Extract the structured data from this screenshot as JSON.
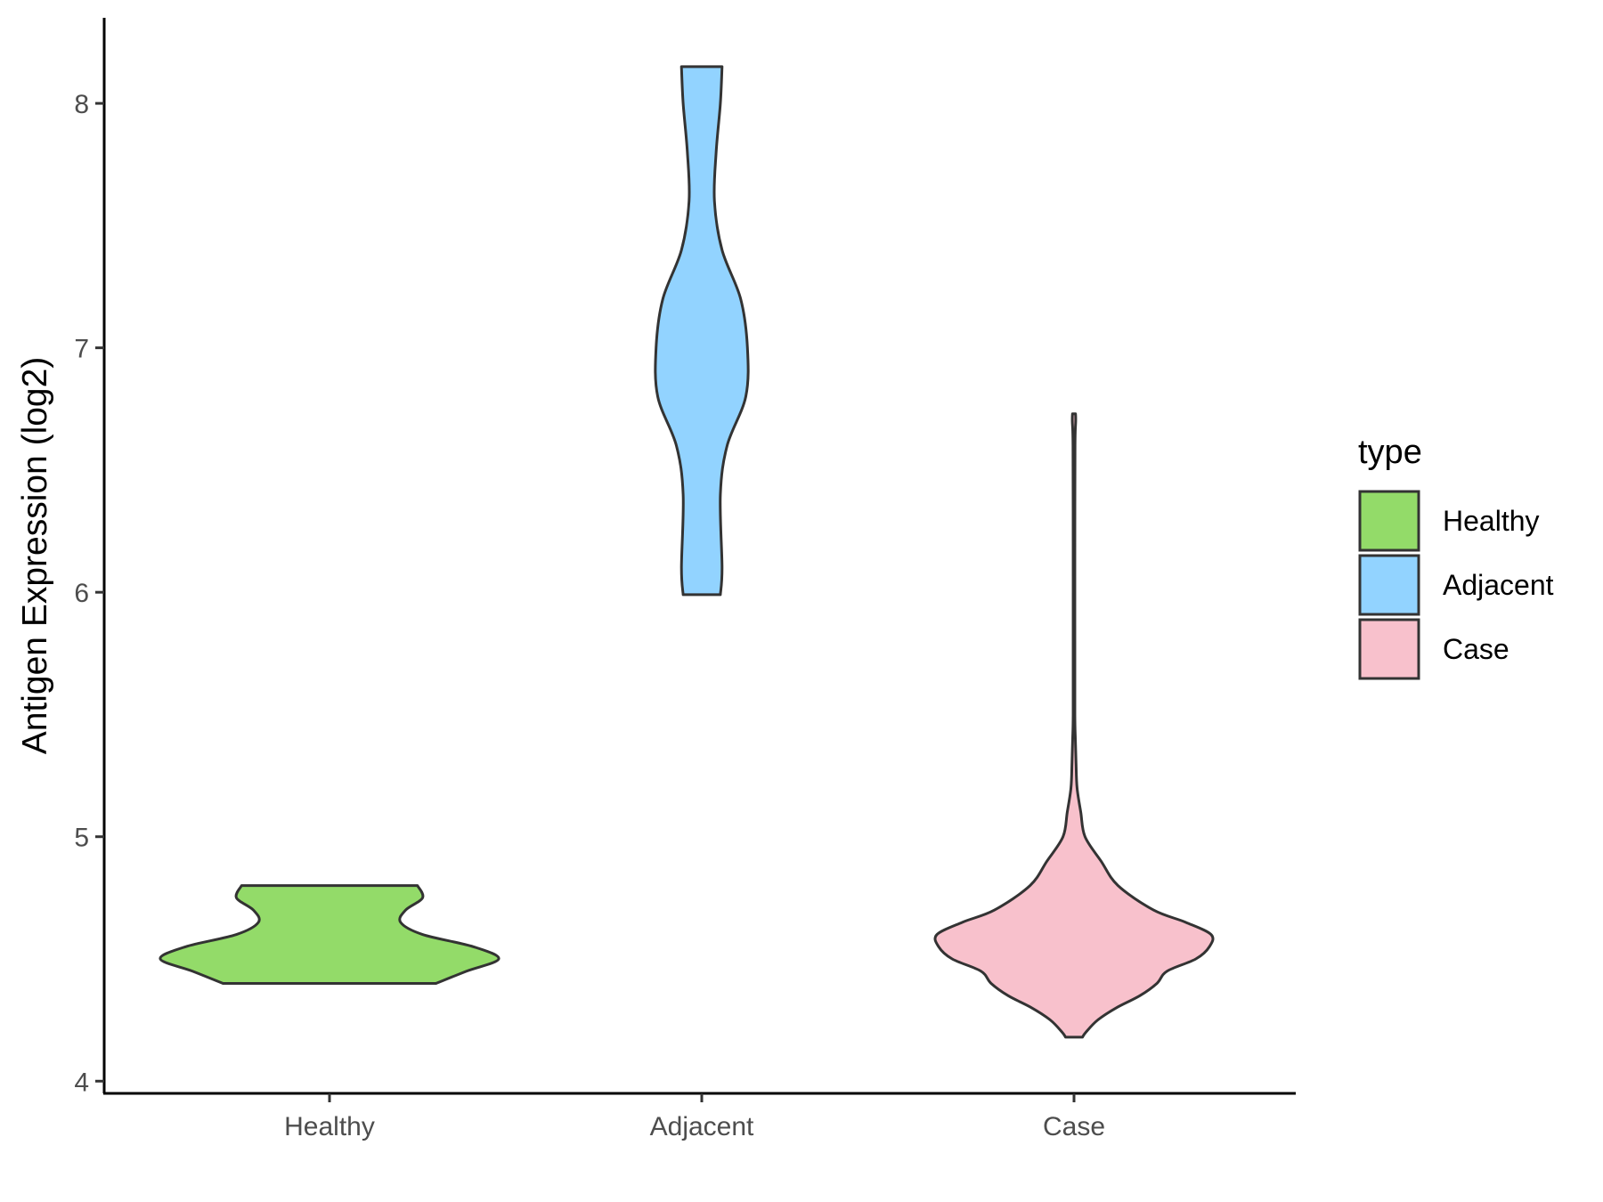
{
  "chart_data": {
    "type": "violin",
    "title": "",
    "xlabel": "",
    "ylabel": "Antigen Expression (log2)",
    "ylim": [
      3.95,
      8.35
    ],
    "yticks": [
      4,
      5,
      6,
      7,
      8
    ],
    "categories": [
      "Healthy",
      "Adjacent",
      "Case"
    ],
    "grid": false,
    "legend": {
      "title": "type",
      "position": "right",
      "entries": [
        {
          "label": "Healthy",
          "color": "#93DB69"
        },
        {
          "label": "Adjacent",
          "color": "#92D3FF"
        },
        {
          "label": "Case",
          "color": "#F8C1CC"
        }
      ]
    },
    "series": [
      {
        "category": "Healthy",
        "color": "#93DB69",
        "ymin": 4.4,
        "ymax": 4.8,
        "density": [
          [
            4.4,
            0.63
          ],
          [
            4.45,
            0.81
          ],
          [
            4.5,
            1.0
          ],
          [
            4.55,
            0.85
          ],
          [
            4.6,
            0.55
          ],
          [
            4.65,
            0.42
          ],
          [
            4.7,
            0.45
          ],
          [
            4.75,
            0.55
          ],
          [
            4.8,
            0.52
          ]
        ]
      },
      {
        "category": "Adjacent",
        "color": "#92D3FF",
        "ymin": 5.99,
        "ymax": 8.15,
        "density": [
          [
            5.99,
            0.11
          ],
          [
            6.1,
            0.12
          ],
          [
            6.4,
            0.11
          ],
          [
            6.6,
            0.15
          ],
          [
            6.8,
            0.26
          ],
          [
            7.0,
            0.27
          ],
          [
            7.2,
            0.23
          ],
          [
            7.4,
            0.12
          ],
          [
            7.6,
            0.075
          ],
          [
            7.8,
            0.085
          ],
          [
            8.0,
            0.11
          ],
          [
            8.15,
            0.12
          ]
        ]
      },
      {
        "category": "Case",
        "color": "#F8C1CC",
        "ymin": 4.18,
        "ymax": 6.73,
        "density": [
          [
            4.18,
            0.05
          ],
          [
            4.2,
            0.07
          ],
          [
            4.25,
            0.14
          ],
          [
            4.3,
            0.25
          ],
          [
            4.35,
            0.39
          ],
          [
            4.4,
            0.49
          ],
          [
            4.45,
            0.55
          ],
          [
            4.5,
            0.72
          ],
          [
            4.55,
            0.8
          ],
          [
            4.6,
            0.81
          ],
          [
            4.65,
            0.66
          ],
          [
            4.7,
            0.47
          ],
          [
            4.8,
            0.26
          ],
          [
            4.9,
            0.16
          ],
          [
            5.0,
            0.065
          ],
          [
            5.1,
            0.04
          ],
          [
            5.2,
            0.018
          ],
          [
            5.3,
            0.012
          ],
          [
            5.4,
            0.008
          ],
          [
            5.5,
            0.005
          ],
          [
            5.8,
            0.005
          ],
          [
            6.2,
            0.005
          ],
          [
            6.6,
            0.006
          ],
          [
            6.7,
            0.01
          ],
          [
            6.73,
            0.009
          ]
        ]
      }
    ]
  }
}
